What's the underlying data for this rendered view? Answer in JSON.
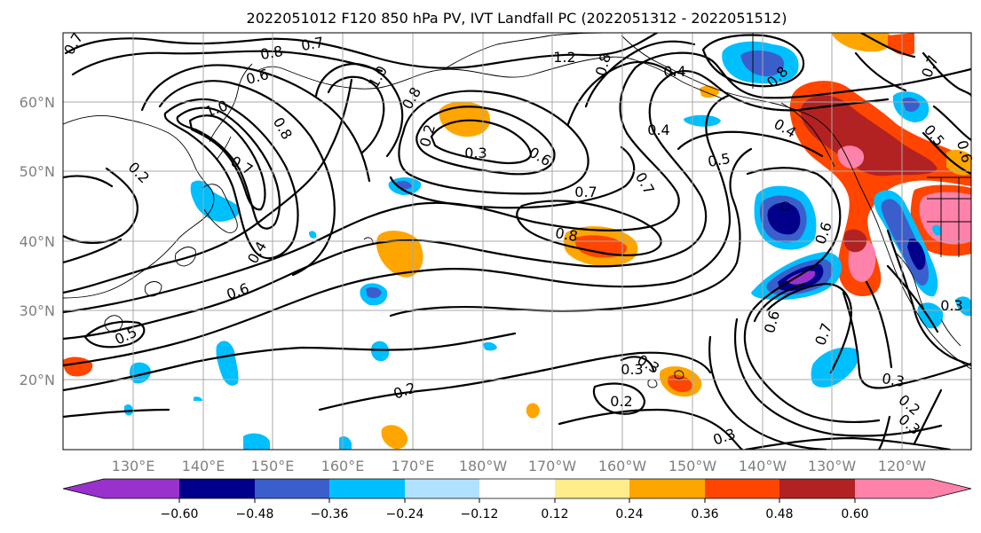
{
  "title": "2022051012 F120 850 hPa PV, IVT Landfall PC (2022051312 - 2022051512)",
  "map": {
    "lat_labels": [
      "60°N",
      "50°N",
      "40°N",
      "30°N",
      "20°N"
    ],
    "lon_labels": [
      "130°E",
      "140°E",
      "150°E",
      "160°E",
      "170°E",
      "180°W",
      "170°W",
      "160°W",
      "150°W",
      "140°W",
      "130°W",
      "120°W"
    ],
    "contour_labels": [
      "0.7",
      "0.8",
      "0.7",
      "0.6",
      "1.0",
      "0.8",
      "1.2",
      "0.8",
      "0.4",
      "0.8",
      "0.7",
      "1.0",
      "0.2",
      "0.7",
      "0.8",
      "0.2",
      "0.3",
      "0.6",
      "0.4",
      "0.5",
      "0.4",
      "0.5",
      "0.6",
      "0.7",
      "0.7",
      "0.8",
      "0.6",
      "0.4",
      "0.6",
      "0.5",
      "0.7",
      "0.3",
      "0.3",
      "0.6",
      "0.2",
      "0.2",
      "0.3",
      "0.3",
      "0.3",
      "0.2",
      "0.3"
    ]
  },
  "colorbar": {
    "tick_labels": [
      "−0.60",
      "−0.48",
      "−0.36",
      "−0.24",
      "−0.12",
      "0.12",
      "0.24",
      "0.36",
      "0.48",
      "0.60"
    ],
    "colors": [
      "#9932cc",
      "#00008b",
      "#3a5fcd",
      "#00bfff",
      "#b0e2ff",
      "#ffffff",
      "#ffec8b",
      "#ffa500",
      "#ff4500",
      "#b22222",
      "#ff82ab"
    ]
  }
}
